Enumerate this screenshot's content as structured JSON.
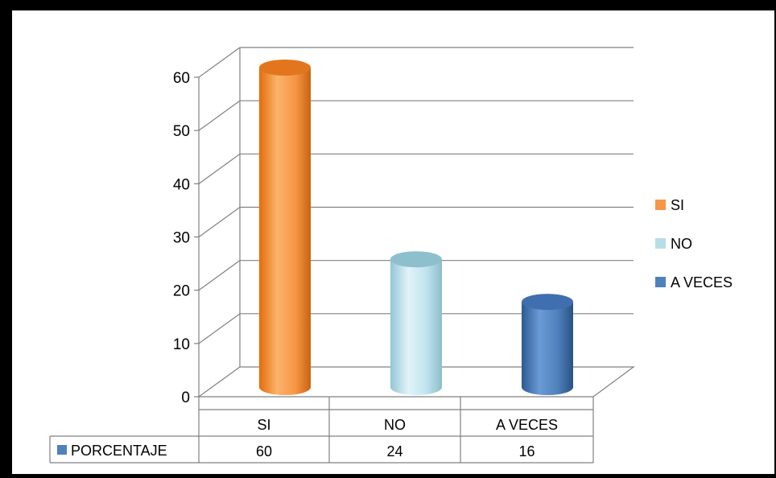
{
  "chart_data": {
    "type": "bar",
    "categories": [
      "SI",
      "NO",
      "A VECES"
    ],
    "series": [
      {
        "name": "PORCENTAJE",
        "values": [
          60,
          24,
          16
        ],
        "color": "#4f81bd"
      }
    ],
    "point_colors": [
      "#f79646",
      "#b7dee8",
      "#4f81bd"
    ],
    "yaxis": {
      "ticks": [
        "0",
        "10",
        "20",
        "30",
        "40",
        "50",
        "60"
      ],
      "min": 0,
      "max": 60,
      "step": 10
    },
    "legend": {
      "position": "right",
      "items": [
        {
          "label": "SI",
          "color": "#f79646"
        },
        {
          "label": "NO",
          "color": "#b7dee8"
        },
        {
          "label": "A VECES",
          "color": "#4f81bd"
        }
      ]
    },
    "data_table": {
      "row_label": "PORCENTAJE",
      "values": [
        "60",
        "24",
        "16"
      ]
    },
    "grid": true,
    "style": "3d-cylinder"
  }
}
